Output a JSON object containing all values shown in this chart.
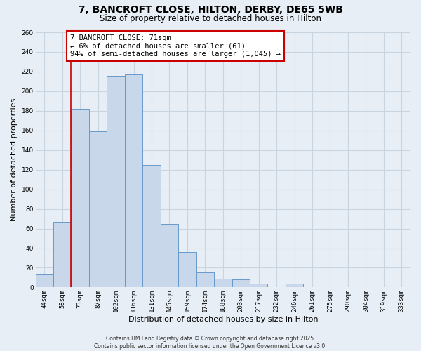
{
  "title": "7, BANCROFT CLOSE, HILTON, DERBY, DE65 5WB",
  "subtitle": "Size of property relative to detached houses in Hilton",
  "xlabel": "Distribution of detached houses by size in Hilton",
  "ylabel": "Number of detached properties",
  "bar_labels": [
    "44sqm",
    "58sqm",
    "73sqm",
    "87sqm",
    "102sqm",
    "116sqm",
    "131sqm",
    "145sqm",
    "159sqm",
    "174sqm",
    "188sqm",
    "203sqm",
    "217sqm",
    "232sqm",
    "246sqm",
    "261sqm",
    "275sqm",
    "290sqm",
    "304sqm",
    "319sqm",
    "333sqm"
  ],
  "bar_values": [
    13,
    67,
    182,
    159,
    216,
    217,
    125,
    65,
    36,
    15,
    9,
    8,
    4,
    0,
    4,
    0,
    0,
    0,
    0,
    0,
    0
  ],
  "bar_color": "#c8d8ea",
  "bar_edge_color": "#6699cc",
  "vline_x": 1.5,
  "vline_color": "#cc0000",
  "annotation_text": "7 BANCROFT CLOSE: 71sqm\n← 6% of detached houses are smaller (61)\n94% of semi-detached houses are larger (1,045) →",
  "annotation_box_color": "#ffffff",
  "annotation_box_edge": "#cc0000",
  "ylim": [
    0,
    260
  ],
  "yticks": [
    0,
    20,
    40,
    60,
    80,
    100,
    120,
    140,
    160,
    180,
    200,
    220,
    240,
    260
  ],
  "footer_text": "Contains HM Land Registry data © Crown copyright and database right 2025.\nContains public sector information licensed under the Open Government Licence v3.0.",
  "background_color": "#e8eef5",
  "grid_color": "#c8d4e0",
  "title_fontsize": 10,
  "subtitle_fontsize": 8.5,
  "axis_label_fontsize": 8,
  "tick_fontsize": 6.5,
  "annotation_fontsize": 7.5,
  "footer_fontsize": 5.5
}
